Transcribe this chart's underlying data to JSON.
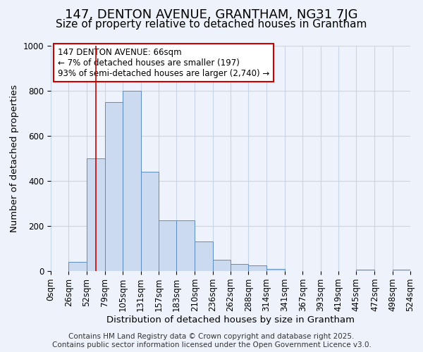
{
  "title": "147, DENTON AVENUE, GRANTHAM, NG31 7JG",
  "subtitle": "Size of property relative to detached houses in Grantham",
  "xlabel": "Distribution of detached houses by size in Grantham",
  "ylabel": "Number of detached properties",
  "bin_labels": [
    "0sqm",
    "26sqm",
    "52sqm",
    "79sqm",
    "105sqm",
    "131sqm",
    "157sqm",
    "183sqm",
    "210sqm",
    "236sqm",
    "262sqm",
    "288sqm",
    "314sqm",
    "341sqm",
    "367sqm",
    "393sqm",
    "419sqm",
    "445sqm",
    "472sqm",
    "498sqm",
    "524sqm"
  ],
  "bin_edges": [
    0,
    26,
    52,
    79,
    105,
    131,
    157,
    183,
    210,
    236,
    262,
    288,
    314,
    341,
    367,
    393,
    419,
    445,
    472,
    498,
    524
  ],
  "bar_heights": [
    0,
    40,
    500,
    750,
    800,
    440,
    225,
    225,
    130,
    50,
    30,
    25,
    10,
    0,
    0,
    0,
    0,
    5,
    0,
    5,
    0
  ],
  "bar_color": "#ccdaf0",
  "bar_edge_color": "#5b8cc8",
  "grid_color": "#c8d4e8",
  "background_color": "#eef2fa",
  "property_line_x": 66,
  "property_line_color": "#cc0000",
  "annotation_text": "147 DENTON AVENUE: 66sqm\n← 7% of detached houses are smaller (197)\n93% of semi-detached houses are larger (2,740) →",
  "annotation_box_color": "#ffffff",
  "annotation_box_edge_color": "#cc0000",
  "ylim": [
    0,
    1000
  ],
  "xlim": [
    0,
    524
  ],
  "footer_text": "Contains HM Land Registry data © Crown copyright and database right 2025.\nContains public sector information licensed under the Open Government Licence v3.0.",
  "title_fontsize": 13,
  "subtitle_fontsize": 11,
  "axis_label_fontsize": 9.5,
  "tick_fontsize": 8.5,
  "annotation_fontsize": 8.5,
  "footer_fontsize": 7.5
}
